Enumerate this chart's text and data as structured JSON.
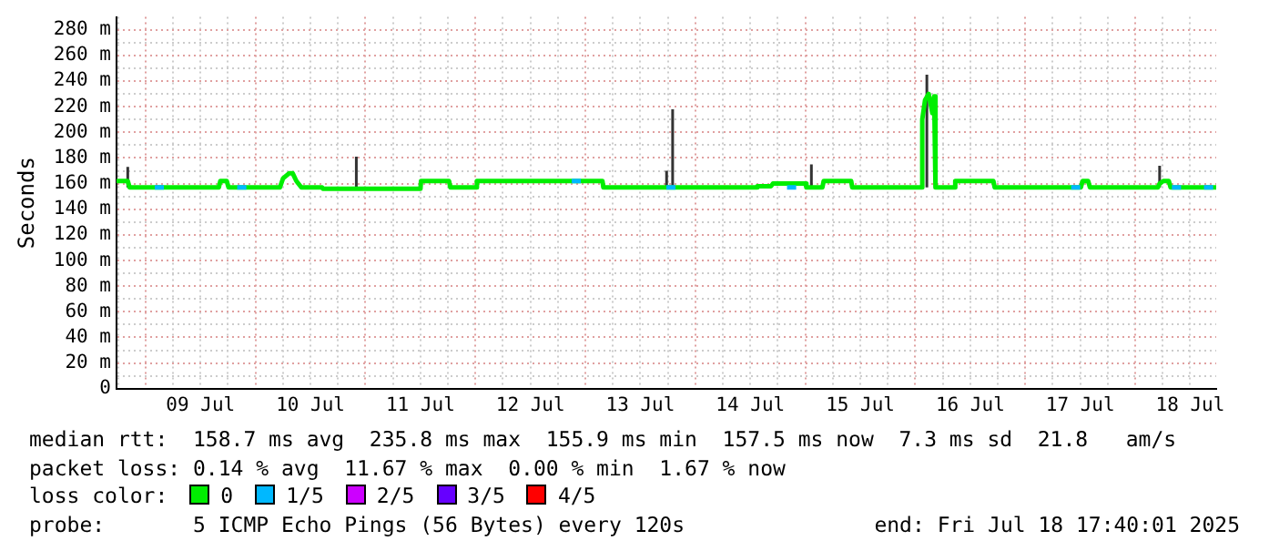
{
  "chart_data": {
    "type": "line",
    "ylabel": "Seconds",
    "legend_title": "loss color:",
    "legend": "bottom",
    "grid": true,
    "marker": "none",
    "line_style": "solid",
    "xlim": [
      "2025-07-08T17:40",
      "2025-07-18T17:40"
    ],
    "xticks": [
      {
        "value": "2025-07-08T18:00",
        "label": null
      },
      {
        "value": "2025-07-09T00:00",
        "label": null
      },
      {
        "value": "2025-07-09T06:00",
        "label": null
      },
      {
        "value": "2025-07-09T12:00",
        "label": "09 Jul"
      },
      {
        "value": "2025-07-09T18:00",
        "label": null
      },
      {
        "value": "2025-07-10T00:00",
        "label": null
      },
      {
        "value": "2025-07-10T06:00",
        "label": null
      },
      {
        "value": "2025-07-10T12:00",
        "label": "10 Jul"
      },
      {
        "value": "2025-07-10T18:00",
        "label": null
      },
      {
        "value": "2025-07-11T00:00",
        "label": null
      },
      {
        "value": "2025-07-11T06:00",
        "label": null
      },
      {
        "value": "2025-07-11T12:00",
        "label": "11 Jul"
      },
      {
        "value": "2025-07-11T18:00",
        "label": null
      },
      {
        "value": "2025-07-12T00:00",
        "label": null
      },
      {
        "value": "2025-07-12T06:00",
        "label": null
      },
      {
        "value": "2025-07-12T12:00",
        "label": "12 Jul"
      },
      {
        "value": "2025-07-12T18:00",
        "label": null
      },
      {
        "value": "2025-07-13T00:00",
        "label": null
      },
      {
        "value": "2025-07-13T06:00",
        "label": null
      },
      {
        "value": "2025-07-13T12:00",
        "label": "13 Jul"
      },
      {
        "value": "2025-07-13T18:00",
        "label": null
      },
      {
        "value": "2025-07-14T00:00",
        "label": null
      },
      {
        "value": "2025-07-14T06:00",
        "label": null
      },
      {
        "value": "2025-07-14T12:00",
        "label": "14 Jul"
      },
      {
        "value": "2025-07-14T18:00",
        "label": null
      },
      {
        "value": "2025-07-15T00:00",
        "label": null
      },
      {
        "value": "2025-07-15T06:00",
        "label": null
      },
      {
        "value": "2025-07-15T12:00",
        "label": "15 Jul"
      },
      {
        "value": "2025-07-15T18:00",
        "label": null
      },
      {
        "value": "2025-07-16T00:00",
        "label": null
      },
      {
        "value": "2025-07-16T06:00",
        "label": null
      },
      {
        "value": "2025-07-16T12:00",
        "label": "16 Jul"
      },
      {
        "value": "2025-07-16T18:00",
        "label": null
      },
      {
        "value": "2025-07-17T00:00",
        "label": null
      },
      {
        "value": "2025-07-17T06:00",
        "label": null
      },
      {
        "value": "2025-07-17T12:00",
        "label": "17 Jul"
      },
      {
        "value": "2025-07-17T18:00",
        "label": null
      },
      {
        "value": "2025-07-18T00:00",
        "label": null
      },
      {
        "value": "2025-07-18T06:00",
        "label": null
      },
      {
        "value": "2025-07-18T12:00",
        "label": "18 Jul"
      }
    ],
    "ylim": [
      0,
      290
    ],
    "yticks": [
      {
        "value": 0,
        "label": "0"
      },
      {
        "value": 10,
        "label": null
      },
      {
        "value": 20,
        "label": "20 m"
      },
      {
        "value": 30,
        "label": null
      },
      {
        "value": 40,
        "label": "40 m"
      },
      {
        "value": 50,
        "label": null
      },
      {
        "value": 60,
        "label": "60 m"
      },
      {
        "value": 70,
        "label": null
      },
      {
        "value": 80,
        "label": "80 m"
      },
      {
        "value": 90,
        "label": null
      },
      {
        "value": 100,
        "label": "100 m"
      },
      {
        "value": 110,
        "label": null
      },
      {
        "value": 120,
        "label": "120 m"
      },
      {
        "value": 130,
        "label": null
      },
      {
        "value": 140,
        "label": "140 m"
      },
      {
        "value": 150,
        "label": null
      },
      {
        "value": 160,
        "label": "160 m"
      },
      {
        "value": 170,
        "label": null
      },
      {
        "value": 180,
        "label": "180 m"
      },
      {
        "value": 190,
        "label": null
      },
      {
        "value": 200,
        "label": "200 m"
      },
      {
        "value": 210,
        "label": null
      },
      {
        "value": 220,
        "label": "220 m"
      },
      {
        "value": 230,
        "label": null
      },
      {
        "value": 240,
        "label": "240 m"
      },
      {
        "value": 250,
        "label": null
      },
      {
        "value": 260,
        "label": "260 m"
      },
      {
        "value": 270,
        "label": null
      },
      {
        "value": 280,
        "label": "280 m"
      }
    ],
    "series": [
      {
        "color": "#333333",
        "x": [
          "2025-07-08T20:07",
          "2025-07-08T20:07",
          "2025-07-08T20:08",
          "2025-07-10T22:00",
          "2025-07-10T22:00",
          "2025-07-10T22:01",
          "2025-07-13T17:43",
          "2025-07-13T17:43",
          "2025-07-13T17:44",
          "2025-07-13T19:02",
          "2025-07-13T19:02",
          "2025-07-13T19:03",
          "2025-07-15T01:19",
          "2025-07-15T01:19",
          "2025-07-15T01:20",
          "2025-07-16T02:31",
          "2025-07-16T02:31",
          "2025-07-16T02:32",
          "2025-07-18T05:19",
          "2025-07-18T05:19"
        ],
        "values": [
          157,
          173,
          null,
          157,
          181,
          null,
          157,
          170,
          null,
          157,
          218,
          null,
          157,
          175,
          null,
          157,
          245,
          null,
          157,
          174
        ]
      },
      {
        "name": "0",
        "color": "#00ee00",
        "x": [
          "2025-07-08T17:40",
          "2025-07-08T20:07",
          "2025-07-08T20:31",
          "2025-07-09T16:00",
          "2025-07-09T16:19",
          "2025-07-09T17:43",
          "2025-07-09T18:07",
          "2025-07-10T05:19",
          "2025-07-10T06:00",
          "2025-07-10T07:19",
          "2025-07-10T08:07",
          "2025-07-10T08:55",
          "2025-07-10T10:00",
          "2025-07-10T14:31",
          "2025-07-10T14:43",
          "2025-07-11T07:19",
          "2025-07-11T12:00",
          "2025-07-11T12:07",
          "2025-07-11T18:14",
          "2025-07-11T18:31",
          "2025-07-12T00:07",
          "2025-07-12T00:19",
          "2025-07-13T03:43",
          "2025-07-13T03:55",
          "2025-07-14T13:19",
          "2025-07-14T13:31",
          "2025-07-14T16:31",
          "2025-07-14T16:55",
          "2025-07-15T00:00",
          "2025-07-15T00:14",
          "2025-07-15T03:43",
          "2025-07-15T04:00",
          "2025-07-15T10:00",
          "2025-07-15T10:14",
          "2025-07-16T01:19",
          "2025-07-16T01:31",
          "2025-07-16T02:07",
          "2025-07-16T02:55",
          "2025-07-16T03:43",
          "2025-07-16T04:07",
          "2025-07-16T04:24",
          "2025-07-16T08:31",
          "2025-07-16T08:43",
          "2025-07-16T17:02",
          "2025-07-16T17:19",
          "2025-07-17T12:07",
          "2025-07-17T12:31",
          "2025-07-17T13:43",
          "2025-07-17T14:07",
          "2025-07-18T04:55",
          "2025-07-18T05:19",
          "2025-07-18T06:07",
          "2025-07-18T07:19",
          "2025-07-18T07:43",
          "2025-07-18T17:40"
        ],
        "values": [
          162,
          162,
          157,
          157,
          162,
          162,
          157,
          157,
          164,
          168,
          168,
          162,
          157,
          157,
          156,
          156,
          156,
          162,
          162,
          157,
          157,
          162,
          162,
          157,
          157,
          158,
          158,
          160,
          160,
          157,
          157,
          162,
          162,
          157,
          157,
          210,
          225,
          230,
          215,
          228,
          157,
          157,
          162,
          162,
          157,
          157,
          162,
          162,
          157,
          157,
          160,
          162,
          162,
          157,
          157
        ]
      },
      {
        "name": "1/5",
        "color": "#00b8ff",
        "x": [
          "2025-07-09T02:00",
          "2025-07-09T04:00",
          "2025-07-09T06:00",
          "2025-07-09T20:00",
          "2025-07-09T22:00",
          "2025-07-10T06:00",
          "2025-07-12T21:00",
          "2025-07-12T23:00",
          "2025-07-13T06:00",
          "2025-07-13T17:40",
          "2025-07-13T19:40",
          "2025-07-14T06:00",
          "2025-07-14T20:00",
          "2025-07-14T22:00",
          "2025-07-15T06:00",
          "2025-07-17T10:00",
          "2025-07-17T12:00",
          "2025-07-17T18:00",
          "2025-07-18T08:00",
          "2025-07-18T10:00",
          "2025-07-18T12:00",
          "2025-07-18T15:00",
          "2025-07-18T17:00"
        ],
        "values": [
          157,
          157,
          null,
          157,
          157,
          null,
          162,
          162,
          null,
          157,
          157,
          null,
          157,
          157,
          null,
          157,
          157,
          null,
          157,
          157,
          null,
          157,
          157
        ]
      },
      {
        "name": "2/5",
        "color": "#cc00ff"
      },
      {
        "name": "3/5",
        "color": "#6600ff"
      },
      {
        "name": "4/5",
        "color": "#ff0000"
      }
    ],
    "annotations": [
      "median rtt:  158.7 ms avg  235.8 ms max  155.9 ms min  157.5 ms now  7.3 ms sd  21.8   am/s",
      "packet loss: 0.14 % avg  11.67 % max  0.00 % min  1.67 % now",
      "probe:       5 ICMP Echo Pings (56 Bytes) every 120s",
      "end: Fri Jul 18 17:40:01 2025"
    ]
  }
}
